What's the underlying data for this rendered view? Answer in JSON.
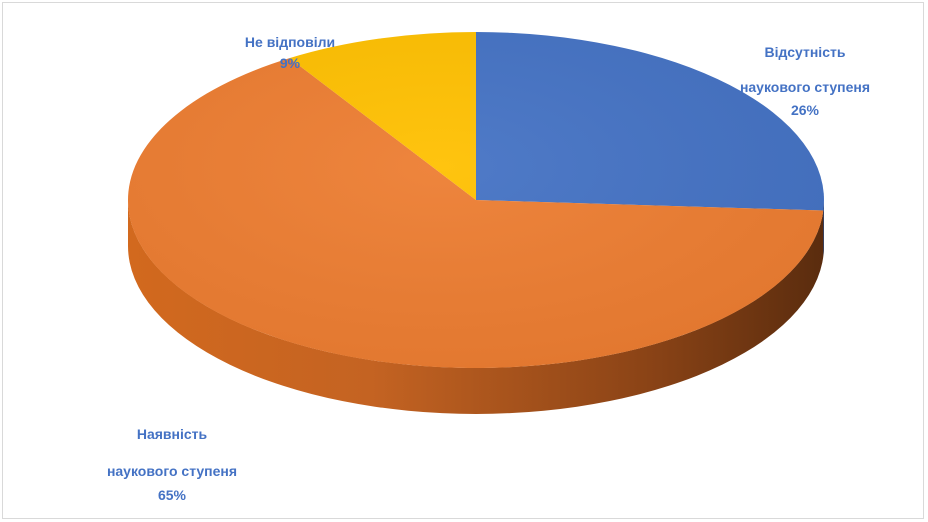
{
  "chart_data": {
    "type": "pie",
    "style": "3d",
    "title": "",
    "slices": [
      {
        "category": "Відсутність наукового ступеня",
        "value": 26,
        "label_lines": [
          "Відсутність",
          "наукового ступеня"
        ],
        "percent_label": "26%",
        "color": "#4472c4"
      },
      {
        "category": "Наявність наукового ступеня",
        "value": 65,
        "label_lines": [
          "Наявність",
          "наукового ступеня"
        ],
        "percent_label": "65%",
        "color": "#ed7d31"
      },
      {
        "category": "Не відповіли",
        "value": 9,
        "label_lines": [
          "Не відповіли"
        ],
        "percent_label": "9%",
        "color": "#ffc000"
      }
    ],
    "label_color": "#4472c4",
    "legend": "none"
  }
}
